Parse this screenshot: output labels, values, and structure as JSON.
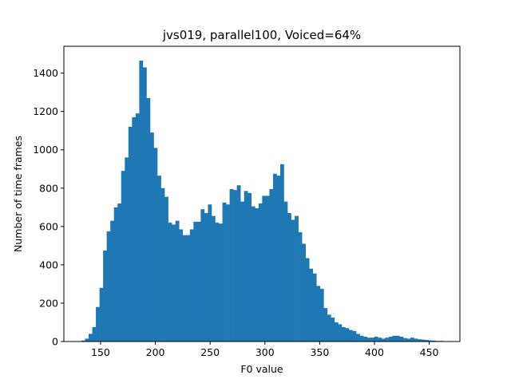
{
  "chart_data": {
    "type": "bar",
    "title": "jvs019, parallel100, Voiced=64%",
    "xlabel": "F0 value",
    "ylabel": "Number of time frames",
    "xlim": [
      116.5,
      478
    ],
    "ylim": [
      0,
      1540
    ],
    "xticks": [
      150,
      200,
      250,
      300,
      350,
      400,
      450
    ],
    "yticks": [
      0,
      200,
      400,
      600,
      800,
      1000,
      1200,
      1400
    ],
    "grid": false,
    "color": "#1f77b4",
    "bin_start": 132.5,
    "bin_width": 3.3,
    "values": [
      5,
      15,
      40,
      75,
      180,
      280,
      475,
      575,
      630,
      700,
      720,
      890,
      960,
      1120,
      1170,
      1190,
      1465,
      1430,
      1270,
      1090,
      1010,
      865,
      800,
      755,
      620,
      610,
      630,
      585,
      555,
      555,
      585,
      625,
      625,
      690,
      670,
      715,
      655,
      620,
      615,
      725,
      715,
      795,
      790,
      815,
      730,
      785,
      775,
      705,
      695,
      720,
      760,
      760,
      795,
      875,
      865,
      925,
      730,
      670,
      635,
      655,
      570,
      510,
      435,
      380,
      355,
      290,
      275,
      175,
      140,
      125,
      100,
      90,
      75,
      70,
      60,
      55,
      40,
      30,
      25,
      20,
      20,
      25,
      20,
      15,
      20,
      25,
      30,
      30,
      25,
      18,
      15,
      20,
      15,
      12,
      10,
      8,
      6,
      5,
      3,
      3,
      2,
      1
    ]
  }
}
